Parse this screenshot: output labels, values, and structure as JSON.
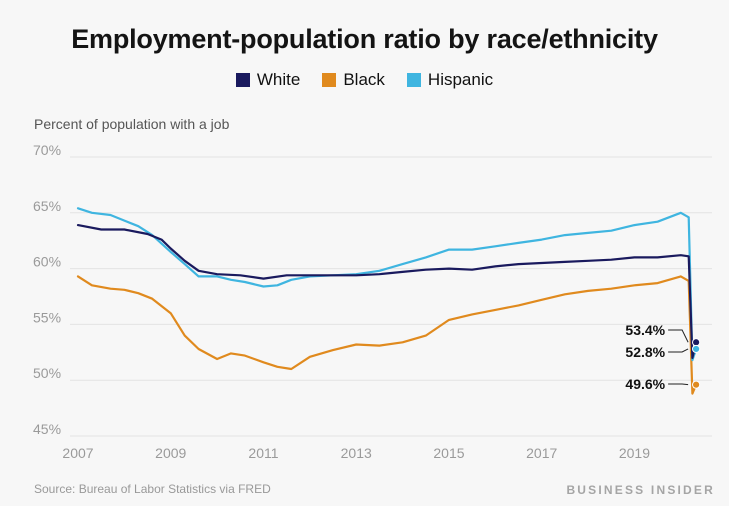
{
  "title": "Employment-population ratio by race/ethnicity",
  "ylabel": "Percent of population with a job",
  "source": "Source: Bureau of Labor Statistics via FRED",
  "brand": "BUSINESS INSIDER",
  "legend": [
    {
      "name": "White",
      "color": "#1a1a5e"
    },
    {
      "name": "Black",
      "color": "#e08a1e"
    },
    {
      "name": "Hispanic",
      "color": "#3fb5e0"
    }
  ],
  "end_labels": {
    "white": "53.4%",
    "hispanic": "52.8%",
    "black": "49.6%"
  },
  "chart_data": {
    "type": "line",
    "title": "Employment-population ratio by race/ethnicity",
    "ylabel": "Percent of population with a job",
    "xlabel": "",
    "ylim": [
      45,
      70
    ],
    "xlim": [
      2007,
      2020.5
    ],
    "y_ticks": [
      "45%",
      "50%",
      "55%",
      "60%",
      "65%",
      "70%"
    ],
    "x_ticks": [
      "2007",
      "2009",
      "2011",
      "2013",
      "2015",
      "2017",
      "2019"
    ],
    "grid": true,
    "legend_position": "top",
    "series": [
      {
        "name": "White",
        "color": "#1a1a5e",
        "x": [
          2007,
          2007.5,
          2008,
          2008.5,
          2008.8,
          2009,
          2009.3,
          2009.6,
          2010,
          2010.5,
          2011,
          2011.5,
          2012,
          2012.5,
          2013,
          2013.5,
          2014,
          2014.5,
          2015,
          2015.5,
          2016,
          2016.5,
          2017,
          2017.5,
          2018,
          2018.5,
          2019,
          2019.5,
          2020,
          2020.17,
          2020.25,
          2020.33
        ],
        "values": [
          63.9,
          63.5,
          63.5,
          63.1,
          62.6,
          61.8,
          60.7,
          59.8,
          59.5,
          59.4,
          59.1,
          59.4,
          59.4,
          59.4,
          59.4,
          59.5,
          59.7,
          59.9,
          60.0,
          59.9,
          60.2,
          60.4,
          60.5,
          60.6,
          60.7,
          60.8,
          61.0,
          61.0,
          61.2,
          61.1,
          52.0,
          53.4
        ]
      },
      {
        "name": "Black",
        "color": "#e08a1e",
        "x": [
          2007,
          2007.3,
          2007.7,
          2008,
          2008.3,
          2008.6,
          2009,
          2009.3,
          2009.6,
          2010,
          2010.3,
          2010.6,
          2011,
          2011.3,
          2011.6,
          2012,
          2012.5,
          2013,
          2013.5,
          2014,
          2014.5,
          2015,
          2015.5,
          2016,
          2016.5,
          2017,
          2017.5,
          2018,
          2018.5,
          2019,
          2019.5,
          2020,
          2020.17,
          2020.25,
          2020.33
        ],
        "values": [
          59.3,
          58.5,
          58.2,
          58.1,
          57.8,
          57.3,
          56.0,
          54.0,
          52.8,
          51.9,
          52.4,
          52.2,
          51.6,
          51.2,
          51.0,
          52.1,
          52.7,
          53.2,
          53.1,
          53.4,
          54.0,
          55.4,
          55.9,
          56.3,
          56.7,
          57.2,
          57.7,
          58.0,
          58.2,
          58.5,
          58.7,
          59.3,
          58.9,
          48.8,
          49.6
        ]
      },
      {
        "name": "Hispanic",
        "color": "#3fb5e0",
        "x": [
          2007,
          2007.3,
          2007.7,
          2008,
          2008.3,
          2008.6,
          2009,
          2009.3,
          2009.6,
          2010,
          2010.3,
          2010.6,
          2011,
          2011.3,
          2011.6,
          2012,
          2012.5,
          2013,
          2013.5,
          2014,
          2014.5,
          2015,
          2015.5,
          2016,
          2016.5,
          2017,
          2017.5,
          2018,
          2018.5,
          2019,
          2019.5,
          2020,
          2020.17,
          2020.25,
          2020.33
        ],
        "values": [
          65.4,
          65.0,
          64.8,
          64.3,
          63.8,
          63.0,
          61.5,
          60.4,
          59.3,
          59.3,
          59.0,
          58.8,
          58.4,
          58.5,
          59.0,
          59.3,
          59.4,
          59.5,
          59.8,
          60.4,
          61.0,
          61.7,
          61.7,
          62.0,
          62.3,
          62.6,
          63.0,
          63.2,
          63.4,
          63.9,
          64.2,
          65.0,
          64.6,
          51.8,
          52.8
        ]
      }
    ]
  }
}
